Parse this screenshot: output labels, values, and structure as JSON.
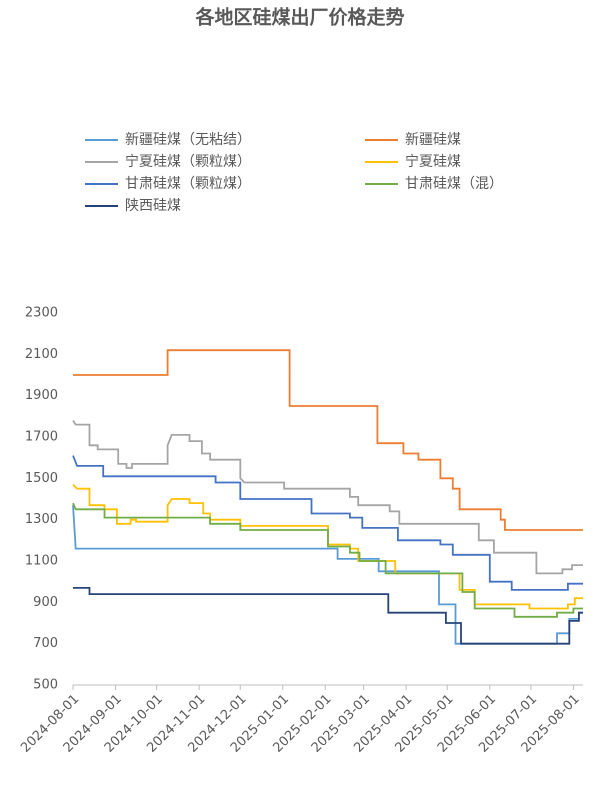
{
  "chart_data": {
    "type": "line",
    "title": "各地区硅煤出厂价格走势",
    "xlim": [
      "2024-08-01",
      "2025-08-08"
    ],
    "xticks": [
      "2024-08-01",
      "2024-09-01",
      "2024-10-01",
      "2024-11-01",
      "2024-12-01",
      "2025-01-01",
      "2025-02-01",
      "2025-03-01",
      "2025-04-01",
      "2025-05-01",
      "2025-06-01",
      "2025-07-01",
      "2025-08-01"
    ],
    "ylim": [
      500,
      2300
    ],
    "yticks": [
      500,
      700,
      900,
      1100,
      1300,
      1500,
      1700,
      1900,
      2100,
      2300
    ],
    "series": [
      {
        "name": "新疆硅煤（无粘结）",
        "color": "#5b9bd5",
        "x": [
          "2024-08-01",
          "2024-08-03",
          "2025-02-10",
          "2025-02-10",
          "2025-03-12",
          "2025-03-12",
          "2025-04-25",
          "2025-04-25",
          "2025-05-07",
          "2025-05-07",
          "2025-07-20",
          "2025-07-20",
          "2025-07-29",
          "2025-07-29",
          "2025-08-05",
          "2025-08-05",
          "2025-08-08"
        ],
        "values": [
          1370,
          1160,
          1160,
          1110,
          1110,
          1050,
          1050,
          890,
          890,
          700,
          700,
          750,
          750,
          820,
          820,
          850,
          850
        ]
      },
      {
        "name": "新疆硅煤",
        "color": "#ed7d31",
        "x": [
          "2024-08-01",
          "2024-10-09",
          "2024-10-09",
          "2025-01-06",
          "2025-01-06",
          "2025-03-11",
          "2025-03-11",
          "2025-03-30",
          "2025-03-30",
          "2025-04-10",
          "2025-04-10",
          "2025-04-26",
          "2025-04-26",
          "2025-05-05",
          "2025-05-05",
          "2025-05-10",
          "2025-05-10",
          "2025-06-09",
          "2025-06-09",
          "2025-06-12",
          "2025-06-12",
          "2025-08-08"
        ],
        "values": [
          2000,
          2000,
          2120,
          2120,
          1850,
          1850,
          1670,
          1670,
          1620,
          1620,
          1590,
          1590,
          1500,
          1500,
          1450,
          1450,
          1350,
          1350,
          1300,
          1300,
          1250,
          1250
        ]
      },
      {
        "name": "宁夏硅煤（颗粒煤）",
        "color": "#a5a5a5",
        "x": [
          "2024-08-01",
          "2024-08-03",
          "2024-08-13",
          "2024-08-13",
          "2024-08-19",
          "2024-08-19",
          "2024-09-03",
          "2024-09-03",
          "2024-09-09",
          "2024-09-09",
          "2024-09-13",
          "2024-09-13",
          "2024-10-09",
          "2024-10-09",
          "2024-10-12",
          "2024-10-25",
          "2024-10-25",
          "2024-11-03",
          "2024-11-03",
          "2024-11-09",
          "2024-11-09",
          "2024-12-01",
          "2024-12-01",
          "2024-12-04",
          "2025-01-02",
          "2025-01-02",
          "2025-02-19",
          "2025-02-19",
          "2025-02-25",
          "2025-02-25",
          "2025-03-20",
          "2025-03-20",
          "2025-03-27",
          "2025-03-27",
          "2025-05-24",
          "2025-05-24",
          "2025-06-04",
          "2025-06-04",
          "2025-07-05",
          "2025-07-05",
          "2025-07-24",
          "2025-07-24",
          "2025-07-31",
          "2025-07-31",
          "2025-08-08"
        ],
        "values": [
          1780,
          1760,
          1760,
          1660,
          1660,
          1640,
          1640,
          1570,
          1570,
          1550,
          1550,
          1570,
          1570,
          1660,
          1710,
          1710,
          1680,
          1680,
          1620,
          1620,
          1590,
          1590,
          1500,
          1480,
          1480,
          1450,
          1450,
          1410,
          1410,
          1370,
          1370,
          1340,
          1340,
          1280,
          1280,
          1200,
          1200,
          1140,
          1140,
          1040,
          1040,
          1060,
          1060,
          1080,
          1080
        ]
      },
      {
        "name": "宁夏硅煤",
        "color": "#ffc000",
        "x": [
          "2024-08-01",
          "2024-08-04",
          "2024-08-13",
          "2024-08-13",
          "2024-08-24",
          "2024-08-24",
          "2024-09-02",
          "2024-09-02",
          "2024-09-12",
          "2024-09-12",
          "2024-09-16",
          "2024-09-16",
          "2024-10-09",
          "2024-10-09",
          "2024-10-12",
          "2024-10-25",
          "2024-10-25",
          "2024-11-04",
          "2024-11-04",
          "2024-11-09",
          "2024-11-09",
          "2024-12-01",
          "2024-12-01",
          "2025-02-03",
          "2025-02-03",
          "2025-02-19",
          "2025-02-19",
          "2025-02-25",
          "2025-02-25",
          "2025-03-24",
          "2025-03-24",
          "2025-05-10",
          "2025-05-10",
          "2025-05-21",
          "2025-05-21",
          "2025-06-30",
          "2025-06-30",
          "2025-07-28",
          "2025-07-28",
          "2025-08-02",
          "2025-08-02",
          "2025-08-08"
        ],
        "values": [
          1470,
          1450,
          1450,
          1370,
          1370,
          1350,
          1350,
          1280,
          1280,
          1300,
          1300,
          1290,
          1290,
          1370,
          1400,
          1400,
          1380,
          1380,
          1330,
          1330,
          1300,
          1300,
          1270,
          1270,
          1180,
          1180,
          1160,
          1160,
          1100,
          1100,
          1040,
          1040,
          960,
          960,
          890,
          890,
          870,
          870,
          890,
          890,
          920,
          920
        ]
      },
      {
        "name": "甘肃硅煤（颗粒煤）",
        "color": "#4472c4",
        "x": [
          "2024-08-01",
          "2024-08-04",
          "2024-08-23",
          "2024-08-23",
          "2024-11-13",
          "2024-11-13",
          "2024-12-01",
          "2024-12-01",
          "2025-01-22",
          "2025-01-22",
          "2025-02-19",
          "2025-02-19",
          "2025-02-28",
          "2025-02-28",
          "2025-03-26",
          "2025-03-26",
          "2025-04-26",
          "2025-04-26",
          "2025-05-05",
          "2025-05-05",
          "2025-06-01",
          "2025-06-01",
          "2025-06-17",
          "2025-06-17",
          "2025-07-28",
          "2025-07-28",
          "2025-08-08"
        ],
        "values": [
          1610,
          1560,
          1560,
          1510,
          1510,
          1480,
          1480,
          1400,
          1400,
          1330,
          1330,
          1310,
          1310,
          1260,
          1260,
          1200,
          1200,
          1180,
          1180,
          1130,
          1130,
          1000,
          1000,
          960,
          960,
          990,
          990
        ]
      },
      {
        "name": "甘肃硅煤（混）",
        "color": "#70ad47",
        "x": [
          "2024-08-01",
          "2024-08-03",
          "2024-08-24",
          "2024-08-24",
          "2024-11-09",
          "2024-11-09",
          "2024-12-01",
          "2024-12-01",
          "2025-02-03",
          "2025-02-03",
          "2025-02-19",
          "2025-02-19",
          "2025-02-26",
          "2025-02-26",
          "2025-03-17",
          "2025-03-17",
          "2025-05-12",
          "2025-05-12",
          "2025-05-21",
          "2025-05-21",
          "2025-06-19",
          "2025-06-19",
          "2025-07-20",
          "2025-07-20",
          "2025-08-01",
          "2025-08-01",
          "2025-08-08"
        ],
        "values": [
          1380,
          1350,
          1350,
          1310,
          1310,
          1280,
          1280,
          1250,
          1250,
          1170,
          1170,
          1140,
          1140,
          1100,
          1100,
          1040,
          1040,
          950,
          950,
          870,
          870,
          830,
          830,
          850,
          850,
          870,
          870
        ]
      },
      {
        "name": "陕西硅煤",
        "color": "#264478",
        "x": [
          "2024-08-01",
          "2024-08-13",
          "2024-08-13",
          "2025-03-19",
          "2025-03-19",
          "2025-04-30",
          "2025-04-30",
          "2025-05-11",
          "2025-05-11",
          "2025-07-29",
          "2025-07-29",
          "2025-08-05",
          "2025-08-05",
          "2025-08-08"
        ],
        "values": [
          970,
          970,
          940,
          940,
          850,
          850,
          800,
          800,
          700,
          700,
          810,
          810,
          850,
          850
        ]
      }
    ]
  }
}
